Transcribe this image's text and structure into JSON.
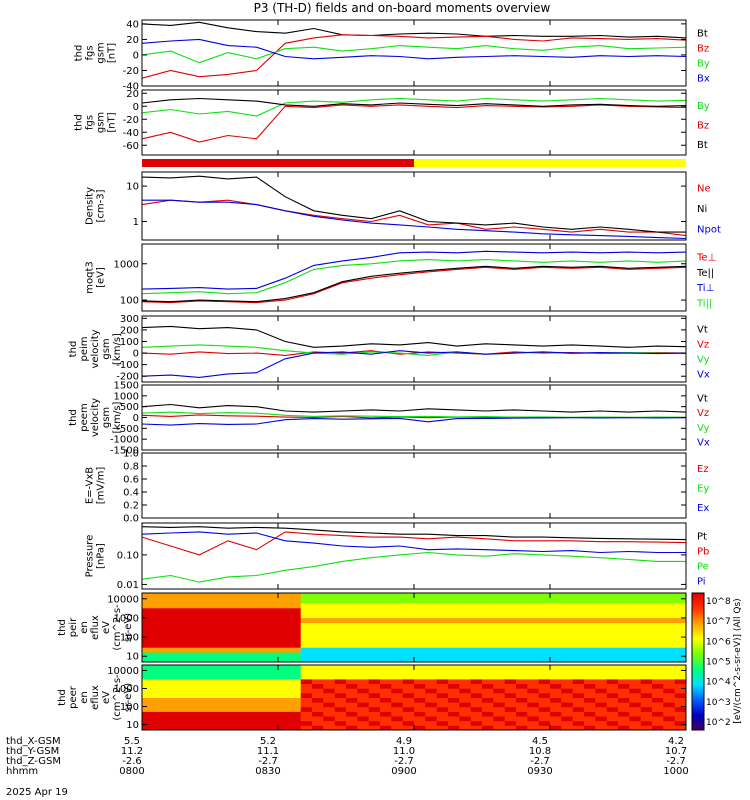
{
  "title": "P3 (TH-D) fields and on-board moments overview",
  "colors": {
    "black": "#000000",
    "red": "#e00000",
    "green": "#10e010",
    "blue": "#0000e0",
    "yellow": "#ffff00"
  },
  "date_label": "2025 Apr 19",
  "colorbar_label": "[eV/(cm^2-s-sr-eV)] (All Qs)",
  "colorbar_ticks": [
    "10^8",
    "10^7",
    "10^6",
    "10^5",
    "10^4",
    "10^3",
    "10^2"
  ],
  "time_axis": {
    "rows": [
      {
        "label": "thd_X-GSM",
        "values": [
          "5.5",
          "5.2",
          "4.9",
          "4.5",
          "4.2"
        ]
      },
      {
        "label": "thd_Y-GSM",
        "values": [
          "11.2",
          "11.1",
          "11.0",
          "10.8",
          "10.7"
        ]
      },
      {
        "label": "thd_Z-GSM",
        "values": [
          "-2.6",
          "-2.7",
          "-2.7",
          "-2.7",
          "-2.7"
        ]
      },
      {
        "label": "hhmm",
        "values": [
          "0800",
          "0830",
          "0900",
          "0930",
          "1000"
        ]
      }
    ]
  },
  "status_bar": {
    "red_until_fraction": 0.5,
    "colors": [
      "red",
      "yellow"
    ]
  },
  "chart_data": [
    {
      "type": "line",
      "ylabel": [
        "thd",
        "fgs",
        "gsm",
        "[nT]"
      ],
      "yticks": [
        "40",
        "20",
        "0",
        "-20",
        "-40"
      ],
      "ylim": [
        -40,
        45
      ],
      "series": [
        {
          "name": "Bt",
          "color": "black",
          "values": [
            40,
            38,
            42,
            35,
            30,
            28,
            34,
            26,
            25,
            27,
            28,
            27,
            24,
            25,
            24,
            24,
            25,
            23,
            24,
            22
          ]
        },
        {
          "name": "Bz",
          "color": "red",
          "values": [
            -30,
            -20,
            -28,
            -25,
            -20,
            15,
            22,
            26,
            25,
            24,
            22,
            23,
            24,
            20,
            18,
            22,
            21,
            20,
            21,
            19
          ]
        },
        {
          "name": "By",
          "color": "green",
          "values": [
            0,
            5,
            -10,
            3,
            -5,
            8,
            10,
            5,
            8,
            12,
            10,
            8,
            12,
            8,
            6,
            10,
            12,
            8,
            9,
            10
          ]
        },
        {
          "name": "Bx",
          "color": "blue",
          "values": [
            15,
            18,
            20,
            12,
            10,
            -2,
            -5,
            -3,
            -1,
            -2,
            -5,
            -3,
            -2,
            -1,
            -2,
            -3,
            -1,
            -2,
            -1,
            -2
          ]
        }
      ]
    },
    {
      "type": "line",
      "ylabel": [
        "thd",
        "fgs",
        "gsm",
        "[nT]"
      ],
      "yticks": [
        "20",
        "0",
        "-20",
        "-40",
        "-60"
      ],
      "ylim": [
        -75,
        25
      ],
      "series": [
        {
          "name": "By",
          "color": "green",
          "values": [
            -10,
            -5,
            -12,
            -8,
            -15,
            5,
            8,
            6,
            10,
            12,
            10,
            8,
            12,
            10,
            8,
            10,
            12,
            10,
            8,
            9
          ]
        },
        {
          "name": "Bz",
          "color": "red",
          "values": [
            -50,
            -40,
            -55,
            -45,
            -50,
            0,
            -2,
            2,
            0,
            2,
            0,
            -2,
            1,
            0,
            -1,
            0,
            2,
            0,
            -1,
            -2
          ]
        },
        {
          "name": "Bt",
          "color": "black",
          "values": [
            5,
            10,
            12,
            10,
            8,
            2,
            0,
            4,
            2,
            5,
            3,
            1,
            4,
            2,
            0,
            2,
            3,
            1,
            0,
            1
          ]
        }
      ]
    },
    {
      "type": "line",
      "ylabel": [
        "Density",
        "[cm-3]"
      ],
      "yticks": [
        "10",
        "1"
      ],
      "log": true,
      "ylim": [
        0.3,
        25
      ],
      "series": [
        {
          "name": "Ne",
          "color": "red",
          "values": [
            3,
            4,
            3.5,
            4,
            3,
            2,
            1.5,
            1.2,
            1,
            1.5,
            0.8,
            0.9,
            0.6,
            0.7,
            0.6,
            0.5,
            0.6,
            0.5,
            0.5,
            0.4
          ]
        },
        {
          "name": "Ni",
          "color": "black",
          "values": [
            18,
            17,
            19,
            16,
            18,
            5,
            2,
            1.5,
            1.2,
            2,
            1,
            0.9,
            0.8,
            0.9,
            0.7,
            0.6,
            0.7,
            0.6,
            0.5,
            0.5
          ]
        },
        {
          "name": "Npot",
          "color": "blue",
          "values": [
            4,
            4,
            3.5,
            3.5,
            3,
            2,
            1.4,
            1.1,
            0.9,
            0.8,
            0.7,
            0.6,
            0.55,
            0.5,
            0.45,
            0.42,
            0.4,
            0.38,
            0.35,
            0.33
          ]
        }
      ]
    },
    {
      "type": "line",
      "ylabel": [
        "moqt3",
        "[eV]"
      ],
      "yticks": [
        "1000",
        "100"
      ],
      "log": true,
      "ylim": [
        50,
        3500
      ],
      "series": [
        {
          "name": "Te⊥",
          "color": "red",
          "values": [
            90,
            85,
            95,
            90,
            85,
            100,
            150,
            300,
            400,
            500,
            600,
            700,
            800,
            700,
            800,
            750,
            800,
            700,
            750,
            800
          ]
        },
        {
          "name": "Te||",
          "color": "black",
          "values": [
            95,
            90,
            100,
            95,
            90,
            110,
            160,
            320,
            450,
            550,
            650,
            750,
            850,
            750,
            850,
            800,
            850,
            750,
            800,
            850
          ]
        },
        {
          "name": "Ti⊥",
          "color": "blue",
          "values": [
            200,
            210,
            220,
            200,
            210,
            400,
            900,
            1200,
            1500,
            2000,
            2100,
            2000,
            2200,
            2100,
            2000,
            2100,
            2000,
            2100,
            2000,
            2100
          ]
        },
        {
          "name": "Ti||",
          "color": "green",
          "values": [
            150,
            160,
            170,
            150,
            160,
            300,
            700,
            900,
            1000,
            1200,
            1300,
            1200,
            1300,
            1200,
            1100,
            1200,
            1100,
            1200,
            1100,
            1200
          ]
        }
      ]
    },
    {
      "type": "line",
      "ylabel": [
        "thd",
        "peim",
        "velocity",
        "gsm",
        "[km/s]"
      ],
      "yticks": [
        "300",
        "200",
        "100",
        "0",
        "-100",
        "-200"
      ],
      "ylim": [
        -250,
        320
      ],
      "series": [
        {
          "name": "Vt",
          "color": "black",
          "values": [
            220,
            230,
            210,
            220,
            200,
            100,
            50,
            60,
            80,
            70,
            90,
            60,
            80,
            70,
            60,
            70,
            60,
            50,
            60,
            55
          ]
        },
        {
          "name": "Vz",
          "color": "red",
          "values": [
            0,
            -10,
            10,
            -5,
            0,
            -20,
            10,
            0,
            20,
            -10,
            10,
            0,
            -10,
            10,
            0,
            5,
            -5,
            0,
            5,
            0
          ]
        },
        {
          "name": "Vy",
          "color": "green",
          "values": [
            50,
            60,
            70,
            60,
            50,
            20,
            0,
            -10,
            10,
            0,
            -20,
            10,
            -10,
            0,
            10,
            -5,
            0,
            5,
            0,
            -5
          ]
        },
        {
          "name": "Vx",
          "color": "blue",
          "values": [
            -200,
            -190,
            -210,
            -180,
            -170,
            -50,
            0,
            10,
            -10,
            20,
            0,
            10,
            -10,
            0,
            10,
            0,
            5,
            0,
            -5,
            0
          ]
        }
      ]
    },
    {
      "type": "line",
      "ylabel": [
        "thd",
        "peem",
        "velocity",
        "gsm",
        "[km/s]"
      ],
      "yticks": [
        "1500",
        "1000",
        "500",
        "0",
        "-500",
        "-1000",
        "-1500"
      ],
      "ylim": [
        -1500,
        1500
      ],
      "series": [
        {
          "name": "Vt",
          "color": "black",
          "values": [
            500,
            600,
            450,
            550,
            500,
            300,
            250,
            300,
            350,
            300,
            400,
            350,
            300,
            350,
            300,
            250,
            300,
            250,
            300,
            250
          ]
        },
        {
          "name": "Vz",
          "color": "red",
          "values": [
            100,
            50,
            120,
            80,
            60,
            20,
            0,
            50,
            -20,
            30,
            -10,
            20,
            0,
            10,
            -10,
            0,
            10,
            -5,
            0,
            5
          ]
        },
        {
          "name": "Vy",
          "color": "green",
          "values": [
            200,
            250,
            180,
            220,
            200,
            100,
            50,
            80,
            60,
            40,
            50,
            30,
            40,
            20,
            30,
            10,
            20,
            10,
            20,
            10
          ]
        },
        {
          "name": "Vx",
          "color": "blue",
          "values": [
            -300,
            -350,
            -280,
            -320,
            -300,
            -100,
            -50,
            -80,
            -60,
            -40,
            -200,
            -50,
            -40,
            -30,
            -20,
            -10,
            -20,
            -10,
            -20,
            -10
          ]
        }
      ]
    },
    {
      "type": "line",
      "ylabel": [
        "E=-VxB",
        "[mV/m]"
      ],
      "yticks": [
        "1.0",
        "0.8",
        "0.6",
        "0.4",
        "0.2",
        "0.0"
      ],
      "ylim": [
        0,
        1
      ],
      "series": [
        {
          "name": "Ez",
          "color": "red",
          "values": []
        },
        {
          "name": "Ey",
          "color": "green",
          "values": []
        },
        {
          "name": "Ex",
          "color": "blue",
          "values": []
        }
      ]
    },
    {
      "type": "line",
      "ylabel": [
        "Pressure",
        "[nPa]"
      ],
      "yticks": [
        "0.10",
        "0.01"
      ],
      "log": true,
      "ylim": [
        0.007,
        1.2
      ],
      "series": [
        {
          "name": "Pt",
          "color": "black",
          "values": [
            0.9,
            0.85,
            0.9,
            0.8,
            0.85,
            0.8,
            0.7,
            0.6,
            0.55,
            0.5,
            0.5,
            0.45,
            0.45,
            0.4,
            0.4,
            0.38,
            0.36,
            0.35,
            0.34,
            0.33
          ]
        },
        {
          "name": "Pb",
          "color": "red",
          "values": [
            0.4,
            0.2,
            0.1,
            0.3,
            0.15,
            0.6,
            0.5,
            0.45,
            0.4,
            0.4,
            0.35,
            0.4,
            0.35,
            0.3,
            0.3,
            0.3,
            0.28,
            0.28,
            0.27,
            0.26
          ]
        },
        {
          "name": "Pe",
          "color": "green",
          "values": [
            0.015,
            0.02,
            0.012,
            0.018,
            0.02,
            0.03,
            0.04,
            0.06,
            0.08,
            0.1,
            0.12,
            0.1,
            0.09,
            0.11,
            0.1,
            0.09,
            0.08,
            0.07,
            0.06,
            0.06
          ]
        },
        {
          "name": "Pi",
          "color": "blue",
          "values": [
            0.5,
            0.55,
            0.6,
            0.5,
            0.55,
            0.3,
            0.25,
            0.2,
            0.18,
            0.2,
            0.15,
            0.16,
            0.15,
            0.14,
            0.13,
            0.14,
            0.12,
            0.13,
            0.12,
            0.12
          ]
        }
      ]
    },
    {
      "type": "heatmap",
      "ylabel": [
        "thd",
        "peir",
        "en",
        "eflux",
        "eV",
        "(cm^2-s-",
        "sr-eV)"
      ],
      "yticks": [
        "10000",
        "1000",
        "100",
        "10"
      ],
      "log": true,
      "ylim": [
        5,
        20000
      ]
    },
    {
      "type": "heatmap",
      "ylabel": [
        "thd",
        "peer",
        "en",
        "eflux",
        "eV",
        "(cm^2-s-",
        "sr-eV)"
      ],
      "yticks": [
        "10000",
        "1000",
        "100",
        "10"
      ],
      "log": true,
      "ylim": [
        5,
        20000
      ]
    }
  ]
}
